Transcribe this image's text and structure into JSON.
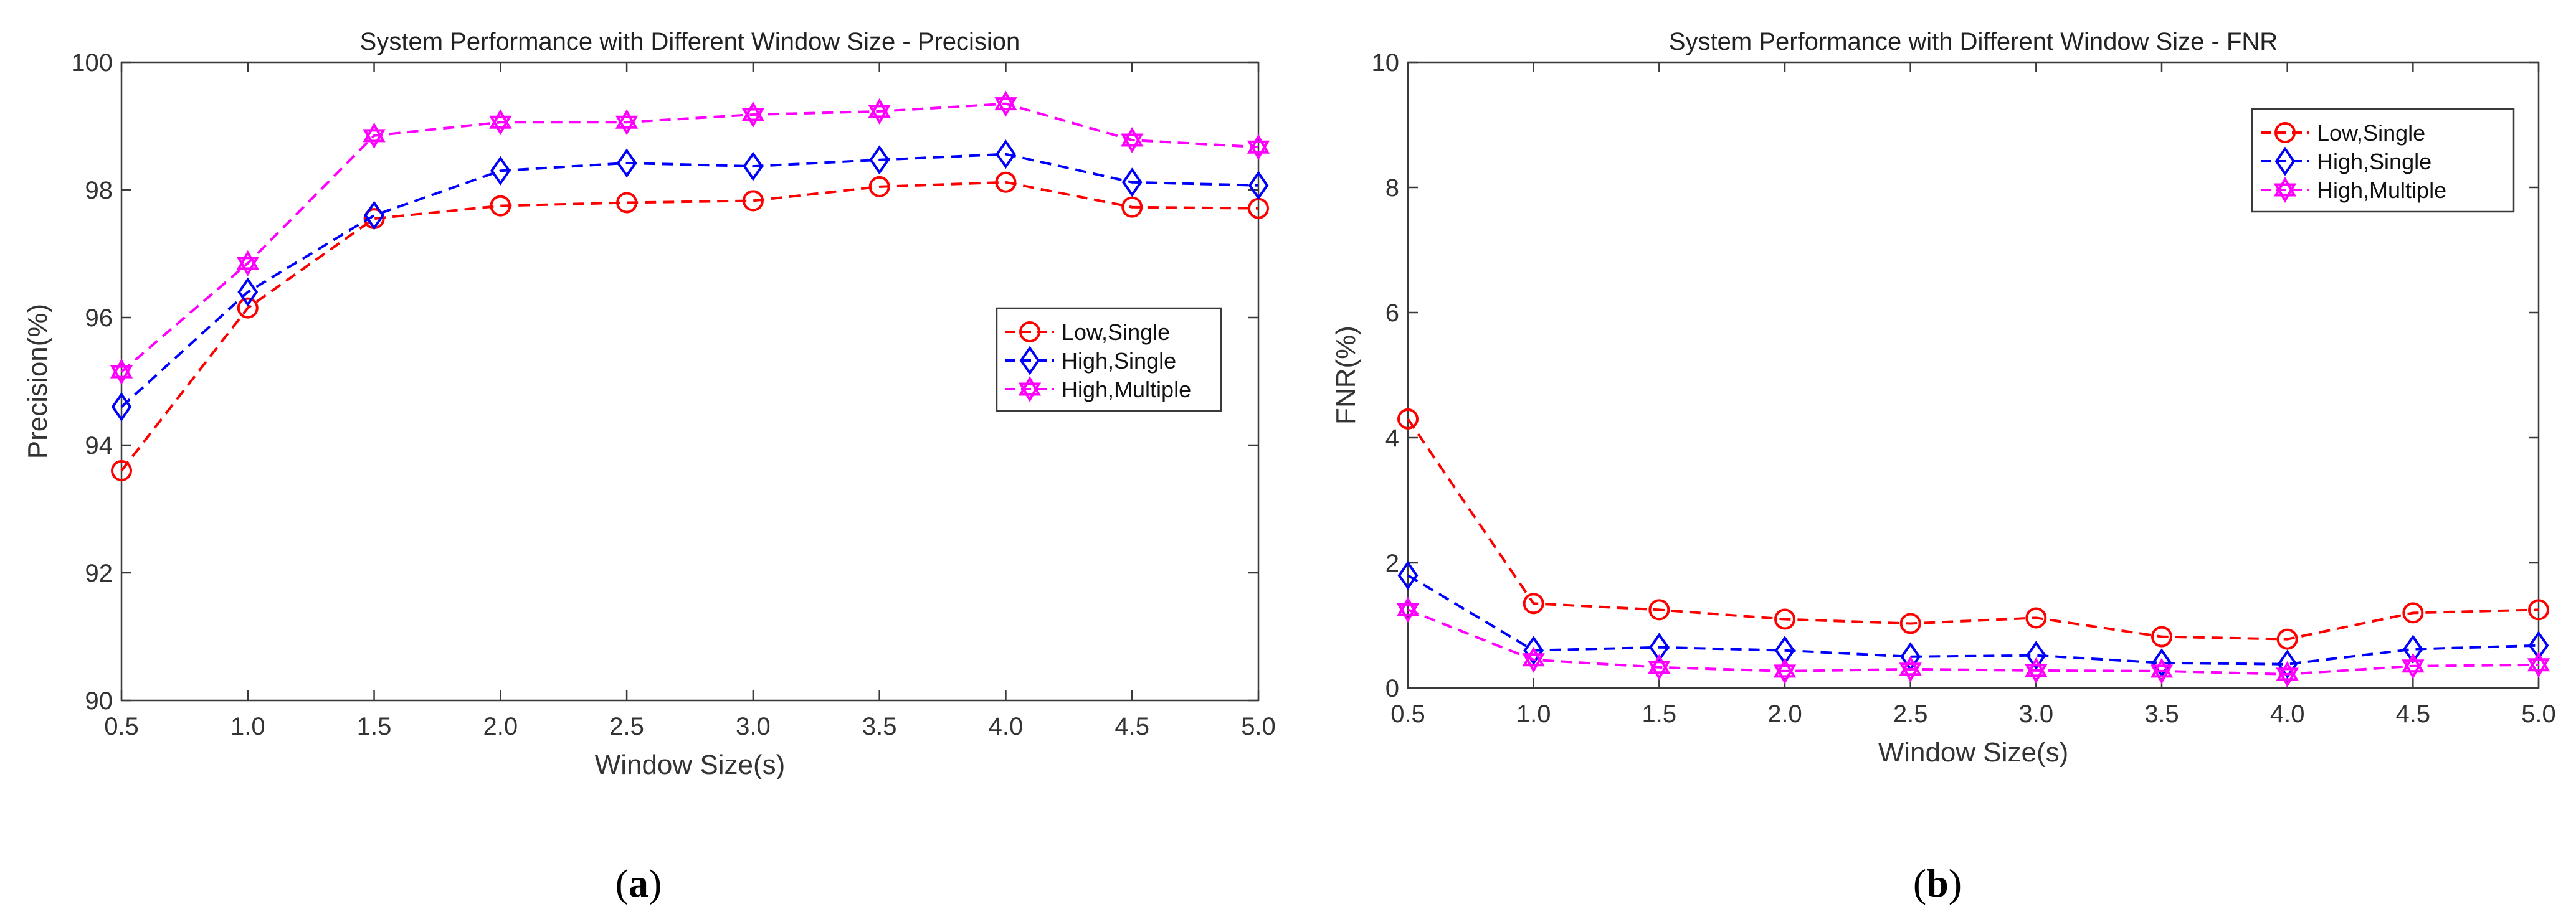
{
  "chart_data": [
    {
      "type": "line",
      "title": "System Performance with Different Window Size - Precision",
      "xlabel": "Window Size(s)",
      "ylabel": "Precision(%)",
      "x": [
        "0.5",
        "1.0",
        "1.5",
        "2.0",
        "2.5",
        "3.0",
        "3.5",
        "4.0",
        "4.5",
        "5.0"
      ],
      "ylim": [
        90,
        100
      ],
      "yticks": [
        "90",
        "92",
        "94",
        "96",
        "98",
        "100"
      ],
      "legend_position": "center-right",
      "caption": "(a)",
      "series": [
        {
          "name": "Low,Single",
          "color": "#ff0000",
          "marker": "circle",
          "values": [
            93.6,
            96.15,
            97.55,
            97.75,
            97.8,
            97.83,
            98.05,
            98.12,
            97.73,
            97.71
          ]
        },
        {
          "name": "High,Single",
          "color": "#0000ff",
          "marker": "diamond",
          "values": [
            94.6,
            96.4,
            97.6,
            98.3,
            98.42,
            98.37,
            98.47,
            98.56,
            98.12,
            98.07
          ]
        },
        {
          "name": "High,Multiple",
          "color": "#ff00ff",
          "marker": "hexagram",
          "values": [
            95.15,
            96.85,
            98.85,
            99.06,
            99.06,
            99.18,
            99.23,
            99.35,
            98.78,
            98.67
          ]
        }
      ]
    },
    {
      "type": "line",
      "title": "System Performance with Different Window Size - FNR",
      "xlabel": "Window Size(s)",
      "ylabel": "FNR(%)",
      "x": [
        "0.5",
        "1.0",
        "1.5",
        "2.0",
        "2.5",
        "3.0",
        "3.5",
        "4.0",
        "4.5",
        "5.0"
      ],
      "ylim": [
        0,
        10
      ],
      "yticks": [
        "0",
        "2",
        "4",
        "6",
        "8",
        "10"
      ],
      "legend_position": "top-right",
      "caption": "(b)",
      "series": [
        {
          "name": "Low,Single",
          "color": "#ff0000",
          "marker": "circle",
          "values": [
            4.3,
            1.35,
            1.25,
            1.1,
            1.03,
            1.12,
            0.82,
            0.78,
            1.2,
            1.25
          ]
        },
        {
          "name": "High,Single",
          "color": "#0000ff",
          "marker": "diamond",
          "values": [
            1.8,
            0.6,
            0.65,
            0.6,
            0.5,
            0.52,
            0.4,
            0.38,
            0.62,
            0.68
          ]
        },
        {
          "name": "High,Multiple",
          "color": "#ff00ff",
          "marker": "hexagram",
          "values": [
            1.25,
            0.45,
            0.33,
            0.27,
            0.3,
            0.28,
            0.27,
            0.22,
            0.35,
            0.37
          ]
        }
      ]
    }
  ]
}
